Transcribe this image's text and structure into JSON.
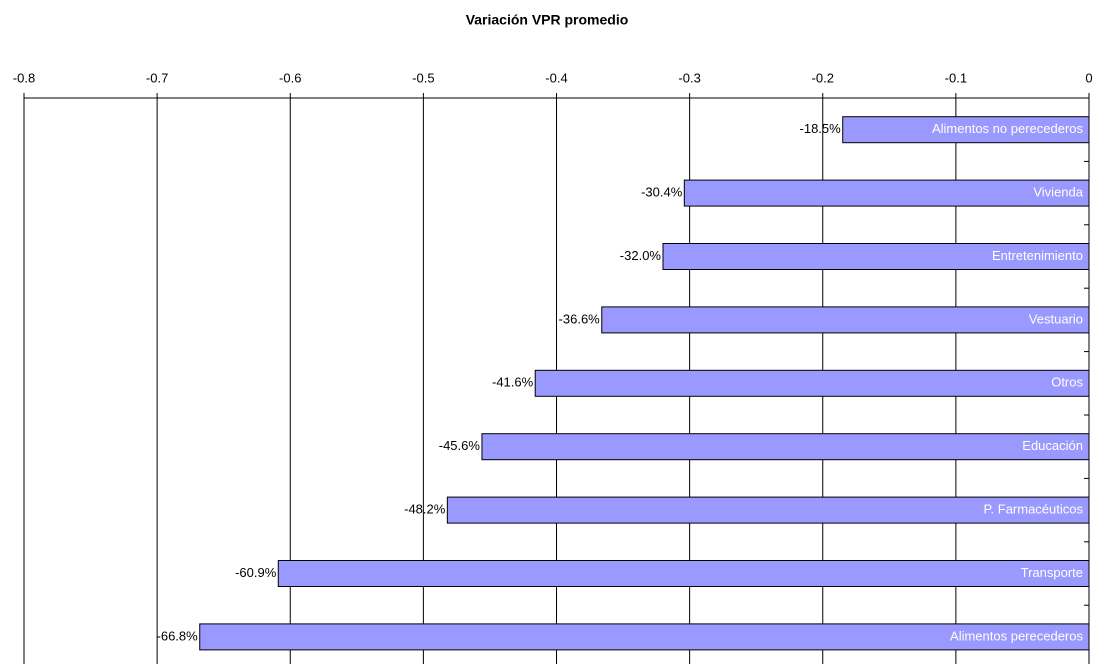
{
  "chart_data": {
    "type": "hbar",
    "title": "Variación VPR promedio",
    "categories": [
      "Alimentos no perecederos",
      "Vivienda",
      "Entretenimiento",
      "Vestuario",
      "Otros",
      "Educación",
      "P. Farmacéuticos",
      "Transporte",
      "Alimentos perecederos"
    ],
    "values": [
      -0.185,
      -0.304,
      -0.32,
      -0.366,
      -0.416,
      -0.456,
      -0.482,
      -0.609,
      -0.668
    ],
    "value_labels": [
      "-18.5%",
      "-30.4%",
      "-32.0%",
      "-36.6%",
      "-41.6%",
      "-45.6%",
      "-48.2%",
      "-60.9%",
      "-66.8%"
    ],
    "color": "#9999ff",
    "xlim": [
      -0.8,
      0
    ],
    "xticks": [
      -0.8,
      -0.7,
      -0.6,
      -0.5,
      -0.4,
      -0.3,
      -0.2,
      -0.1,
      0
    ],
    "grid": true
  }
}
